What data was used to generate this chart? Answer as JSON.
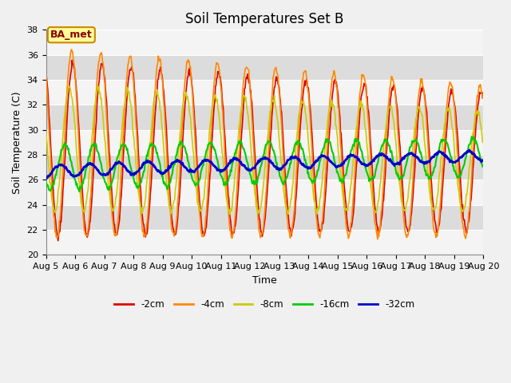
{
  "title": "Soil Temperatures Set B",
  "xlabel": "Time",
  "ylabel": "Soil Temperature (C)",
  "ylim": [
    20,
    38
  ],
  "yticks": [
    20,
    22,
    24,
    26,
    28,
    30,
    32,
    34,
    36,
    38
  ],
  "legend_labels": [
    "-2cm",
    "-4cm",
    "-8cm",
    "-16cm",
    "-32cm"
  ],
  "legend_colors": [
    "#dd0000",
    "#ff8800",
    "#cccc00",
    "#00cc00",
    "#0000cc"
  ],
  "line_widths": [
    1.2,
    1.2,
    1.2,
    1.5,
    2.0
  ],
  "annotation_text": "BA_met",
  "annotation_bg": "#ffff99",
  "annotation_border": "#cc8800",
  "title_fontsize": 12,
  "label_fontsize": 9,
  "tick_fontsize": 8,
  "fig_bg": "#f0f0f0",
  "plot_bg": "#e8e8e8",
  "band_colors": [
    "#f4f4f4",
    "#dcdcdc"
  ]
}
